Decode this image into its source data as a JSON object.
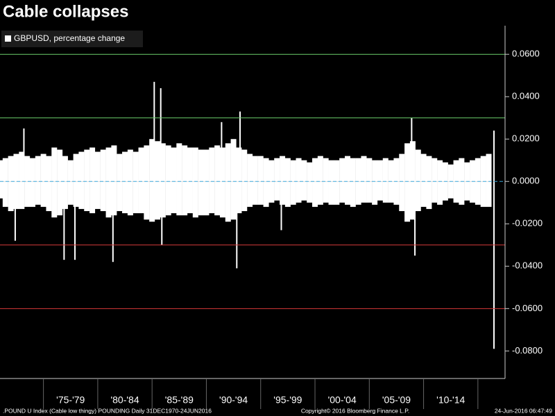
{
  "chart_data": {
    "type": "bar",
    "title": "Cable collapses",
    "series": [
      {
        "name": "GBPUSD, percentage change",
        "color": "#ffffff",
        "x": [
          1971.0,
          1971.5,
          1972.0,
          1972.5,
          1973.0,
          1973.5,
          1974.0,
          1974.5,
          1975.0,
          1975.5,
          1976.0,
          1976.5,
          1977.0,
          1977.5,
          1978.0,
          1978.5,
          1979.0,
          1979.5,
          1980.0,
          1980.5,
          1981.0,
          1981.5,
          1982.0,
          1982.5,
          1983.0,
          1983.5,
          1984.0,
          1984.5,
          1985.0,
          1985.5,
          1986.0,
          1986.5,
          1987.0,
          1987.5,
          1988.0,
          1988.5,
          1989.0,
          1989.5,
          1990.0,
          1990.5,
          1991.0,
          1991.5,
          1992.0,
          1992.5,
          1993.0,
          1993.5,
          1994.0,
          1994.5,
          1995.0,
          1995.5,
          1996.0,
          1996.5,
          1997.0,
          1997.5,
          1998.0,
          1998.5,
          1999.0,
          1999.5,
          2000.0,
          2000.5,
          2001.0,
          2001.5,
          2002.0,
          2002.5,
          2003.0,
          2003.5,
          2004.0,
          2004.5,
          2005.0,
          2005.5,
          2006.0,
          2006.5,
          2007.0,
          2007.5,
          2008.0,
          2008.5,
          2009.0,
          2009.5,
          2010.0,
          2010.5,
          2011.0,
          2011.5,
          2012.0,
          2012.5,
          2013.0,
          2013.5,
          2014.0,
          2014.5,
          2015.0,
          2015.5,
          2016.0,
          1971.0,
          1971.5,
          1972.0,
          1972.5,
          1973.0,
          1973.5,
          1974.0,
          1974.5,
          1975.0,
          1975.5,
          1976.0,
          1976.5,
          1977.0,
          1977.5,
          1978.0,
          1978.5,
          1979.0,
          1979.5,
          1980.0,
          1980.5,
          1981.0,
          1981.5,
          1982.0,
          1982.5,
          1983.0,
          1983.5,
          1984.0,
          1984.5,
          1985.0,
          1985.5,
          1986.0,
          1986.5,
          1987.0,
          1987.5,
          1988.0,
          1988.5,
          1989.0,
          1989.5,
          1990.0,
          1990.5,
          1991.0,
          1991.5,
          1992.0,
          1992.5,
          1993.0,
          1993.5,
          1994.0,
          1994.5,
          1995.0,
          1995.5,
          1996.0,
          1996.5,
          1997.0,
          1997.5,
          1998.0,
          1998.5,
          1999.0,
          1999.5,
          2000.0,
          2000.5,
          2001.0,
          2001.5,
          2002.0,
          2002.5,
          2003.0,
          2003.5,
          2004.0,
          2004.5,
          2005.0,
          2005.5,
          2006.0,
          2006.5,
          2007.0,
          2007.5,
          2008.0,
          2008.5,
          2009.0,
          2009.5,
          2010.0,
          2010.5,
          2011.0,
          2011.5,
          2012.0,
          2012.5,
          2013.0,
          2013.5,
          2014.0,
          2014.5,
          2015.0,
          2015.5,
          2016.0,
          1972.4,
          1973.2,
          1976.9,
          1977.9,
          1981.4,
          1985.2,
          1985.8,
          1985.9,
          1991.4,
          1992.8,
          1993.1,
          1996.9,
          2008.9,
          2009.2,
          2016.48,
          2016.48
        ],
        "values": [
          0.01,
          0.011,
          0.012,
          0.013,
          0.014,
          0.012,
          0.011,
          0.012,
          0.013,
          0.012,
          0.016,
          0.015,
          0.012,
          0.01,
          0.013,
          0.014,
          0.015,
          0.016,
          0.014,
          0.015,
          0.016,
          0.017,
          0.013,
          0.014,
          0.015,
          0.014,
          0.016,
          0.017,
          0.02,
          0.019,
          0.018,
          0.017,
          0.016,
          0.018,
          0.017,
          0.016,
          0.016,
          0.015,
          0.015,
          0.016,
          0.017,
          0.016,
          0.018,
          0.02,
          0.016,
          0.015,
          0.013,
          0.012,
          0.012,
          0.011,
          0.01,
          0.011,
          0.012,
          0.011,
          0.01,
          0.011,
          0.01,
          0.009,
          0.011,
          0.012,
          0.011,
          0.01,
          0.01,
          0.011,
          0.012,
          0.011,
          0.011,
          0.012,
          0.011,
          0.01,
          0.01,
          0.011,
          0.01,
          0.011,
          0.013,
          0.018,
          0.019,
          0.015,
          0.013,
          0.012,
          0.011,
          0.01,
          0.009,
          0.008,
          0.01,
          0.011,
          0.009,
          0.01,
          0.011,
          0.012,
          0.013,
          -0.008,
          -0.012,
          -0.014,
          -0.013,
          -0.013,
          -0.012,
          -0.012,
          -0.011,
          -0.012,
          -0.014,
          -0.017,
          -0.016,
          -0.013,
          -0.011,
          -0.012,
          -0.013,
          -0.014,
          -0.015,
          -0.013,
          -0.014,
          -0.017,
          -0.016,
          -0.014,
          -0.015,
          -0.016,
          -0.015,
          -0.015,
          -0.018,
          -0.019,
          -0.018,
          -0.017,
          -0.016,
          -0.015,
          -0.016,
          -0.016,
          -0.015,
          -0.017,
          -0.016,
          -0.016,
          -0.015,
          -0.016,
          -0.017,
          -0.019,
          -0.018,
          -0.015,
          -0.014,
          -0.012,
          -0.011,
          -0.011,
          -0.012,
          -0.01,
          -0.009,
          -0.011,
          -0.012,
          -0.011,
          -0.01,
          -0.009,
          -0.01,
          -0.012,
          -0.011,
          -0.01,
          -0.011,
          -0.011,
          -0.01,
          -0.011,
          -0.012,
          -0.011,
          -0.01,
          -0.01,
          -0.011,
          -0.009,
          -0.01,
          -0.01,
          -0.011,
          -0.014,
          -0.019,
          -0.018,
          -0.014,
          -0.012,
          -0.013,
          -0.01,
          -0.011,
          -0.009,
          -0.008,
          -0.01,
          -0.011,
          -0.009,
          -0.01,
          -0.011,
          -0.012,
          -0.012,
          -0.028,
          0.025,
          -0.037,
          -0.037,
          -0.038,
          0.047,
          0.044,
          -0.03,
          0.028,
          -0.041,
          0.033,
          -0.023,
          0.03,
          -0.035,
          0.024,
          -0.079
        ]
      }
    ],
    "xlim": [
      1971,
      2017.5
    ],
    "xticks": [
      1975,
      1980,
      1985,
      1990,
      1995,
      2000,
      2005,
      2010,
      2015
    ],
    "xtick_labels": [
      "'75-'79",
      "'80-'84",
      "'85-'89",
      "'90-'94",
      "'95-'99",
      "'00-'04",
      "'05-'09",
      "'10-'14"
    ],
    "ylim": [
      -0.093,
      0.0735
    ],
    "yticks": [
      {
        "value": 0.06,
        "label": "0.0600"
      },
      {
        "value": 0.04,
        "label": "0.0400"
      },
      {
        "value": 0.02,
        "label": "0.0200"
      },
      {
        "value": 0,
        "label": "0.0000"
      },
      {
        "value": -0.02,
        "label": "-0.0200"
      },
      {
        "value": -0.04,
        "label": "-0.0400"
      },
      {
        "value": -0.06,
        "label": "-0.0600"
      },
      {
        "value": -0.08,
        "label": "-0.0800"
      }
    ],
    "reference_lines": [
      {
        "value": 0.06,
        "color": "#6ccf6c"
      },
      {
        "value": 0.03,
        "color": "#6ccf6c"
      },
      {
        "value": 0,
        "color": "#3aa6d8"
      },
      {
        "value": -0.03,
        "color": "#d83a3a"
      },
      {
        "value": -0.06,
        "color": "#d83a3a"
      }
    ],
    "footer": {
      "left": ".POUND U Index (Cable low thingy) POUNDING  Daily 31DEC1970-24JUN2016",
      "center": "Copyright© 2016 Bloomberg Finance L.P.",
      "right": "24-Jun-2016 06:47:49"
    }
  }
}
